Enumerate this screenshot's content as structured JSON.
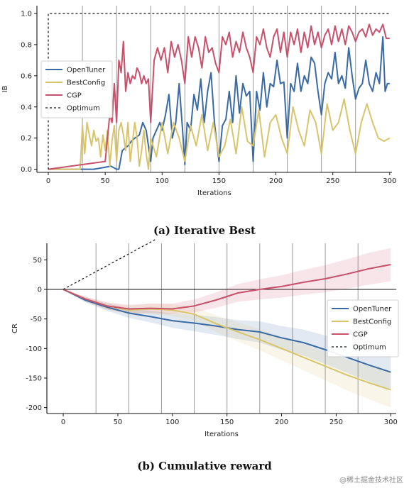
{
  "colors": {
    "OpenTuner": "#3a6aa6",
    "BestConfig": "#d9c46a",
    "CGP": "#c8506a",
    "Optimum": "#111111",
    "vline": "#9a9a9a"
  },
  "watermark": "@稀土掘金技术社区",
  "chart_data": [
    {
      "type": "line",
      "caption": "(a) Iterative Best",
      "xlabel": "Iterations",
      "ylabel": "IB",
      "xlim": [
        -10,
        302
      ],
      "ylim": [
        -0.02,
        1.05
      ],
      "xticks": [
        0,
        50,
        100,
        150,
        200,
        250,
        300
      ],
      "yticks": [
        0.0,
        0.2,
        0.4,
        0.6,
        0.8,
        1.0
      ],
      "ytick_labels": [
        "0.0",
        "0.2",
        "0.4",
        "0.6",
        "0.8",
        "1.0"
      ],
      "vlines": [
        30,
        60,
        90,
        120,
        150,
        180,
        210,
        240,
        270
      ],
      "legend_position": "center-left",
      "series": [
        {
          "name": "OpenTuner",
          "style": "solid",
          "x": [
            0,
            40,
            48,
            55,
            60,
            62,
            65,
            70,
            73,
            76,
            80,
            83,
            86,
            90,
            92,
            95,
            98,
            100,
            103,
            106,
            109,
            112,
            115,
            118,
            120,
            122,
            125,
            128,
            131,
            134,
            137,
            140,
            143,
            146,
            150,
            153,
            156,
            159,
            162,
            165,
            168,
            171,
            174,
            177,
            180,
            183,
            186,
            189,
            192,
            195,
            198,
            201,
            204,
            207,
            210,
            213,
            216,
            219,
            222,
            225,
            228,
            231,
            234,
            237,
            240,
            243,
            246,
            249,
            252,
            255,
            258,
            261,
            264,
            267,
            270,
            273,
            276,
            279,
            282,
            285,
            288,
            291,
            294,
            296,
            298,
            300
          ],
          "y": [
            0,
            0,
            0.01,
            0.02,
            0.0,
            0.0,
            0.12,
            0.15,
            0.18,
            0.2,
            0.22,
            0.3,
            0.25,
            0.05,
            0.2,
            0.25,
            0.3,
            0.25,
            0.35,
            0.48,
            0.2,
            0.3,
            0.55,
            0.25,
            0.03,
            0.3,
            0.25,
            0.48,
            0.38,
            0.58,
            0.3,
            0.5,
            0.62,
            0.3,
            0.05,
            0.28,
            0.32,
            0.5,
            0.3,
            0.6,
            0.36,
            0.55,
            0.47,
            0.5,
            0.05,
            0.5,
            0.38,
            0.62,
            0.4,
            0.55,
            0.53,
            0.7,
            0.55,
            0.56,
            0.2,
            0.55,
            0.5,
            0.68,
            0.5,
            0.6,
            0.55,
            0.72,
            0.68,
            0.5,
            0.35,
            0.55,
            0.62,
            0.58,
            0.75,
            0.55,
            0.6,
            0.52,
            0.78,
            0.6,
            0.45,
            0.52,
            0.55,
            0.7,
            0.55,
            0.5,
            0.62,
            0.55,
            0.85,
            0.5,
            0.55,
            0.55
          ]
        },
        {
          "name": "BestConfig",
          "style": "solid",
          "x": [
            0,
            28,
            30,
            32,
            34,
            36,
            38,
            40,
            42,
            44,
            46,
            48,
            50,
            52,
            54,
            56,
            58,
            60,
            62,
            64,
            66,
            68,
            70,
            72,
            74,
            76,
            78,
            80,
            82,
            84,
            86,
            88,
            90,
            95,
            100,
            105,
            110,
            115,
            120,
            125,
            130,
            135,
            140,
            145,
            150,
            155,
            160,
            165,
            170,
            175,
            180,
            185,
            190,
            195,
            200,
            205,
            210,
            215,
            220,
            225,
            230,
            235,
            240,
            245,
            250,
            255,
            260,
            265,
            270,
            275,
            280,
            285,
            290,
            295,
            300
          ],
          "y": [
            0,
            0,
            0.28,
            0.1,
            0.3,
            0.22,
            0.15,
            0.25,
            0.18,
            0.2,
            0.08,
            0.22,
            0.12,
            0.25,
            0.02,
            0.18,
            0.28,
            0.05,
            0.25,
            0.3,
            0.22,
            0.12,
            0.3,
            0.05,
            0.18,
            0.3,
            0.2,
            0.02,
            0.12,
            0.25,
            0.1,
            0.0,
            0.2,
            0.08,
            0.3,
            0.1,
            0.3,
            0.2,
            0.05,
            0.28,
            0.15,
            0.35,
            0.12,
            0.3,
            0.08,
            0.15,
            0.32,
            0.1,
            0.4,
            0.18,
            0.15,
            0.38,
            0.08,
            0.3,
            0.35,
            0.2,
            0.1,
            0.4,
            0.25,
            0.15,
            0.38,
            0.3,
            0.1,
            0.42,
            0.25,
            0.3,
            0.45,
            0.25,
            0.1,
            0.3,
            0.42,
            0.3,
            0.2,
            0.18,
            0.2
          ]
        },
        {
          "name": "CGP",
          "style": "solid",
          "x": [
            0,
            50,
            52,
            54,
            56,
            58,
            60,
            62,
            64,
            66,
            68,
            70,
            72,
            74,
            76,
            78,
            80,
            82,
            84,
            86,
            88,
            90,
            93,
            96,
            99,
            102,
            105,
            108,
            111,
            114,
            117,
            120,
            123,
            126,
            129,
            132,
            135,
            138,
            141,
            144,
            147,
            150,
            153,
            156,
            159,
            162,
            165,
            168,
            171,
            174,
            177,
            180,
            183,
            186,
            189,
            192,
            195,
            198,
            201,
            204,
            207,
            210,
            213,
            216,
            219,
            222,
            225,
            228,
            231,
            234,
            237,
            240,
            243,
            246,
            249,
            252,
            255,
            258,
            261,
            264,
            267,
            270,
            273,
            276,
            279,
            282,
            285,
            288,
            291,
            294,
            297,
            300
          ],
          "y": [
            0,
            0.05,
            0.2,
            0.35,
            0.3,
            0.55,
            0.3,
            0.7,
            0.62,
            0.82,
            0.5,
            0.62,
            0.55,
            0.6,
            0.58,
            0.65,
            0.62,
            0.55,
            0.6,
            0.55,
            0.58,
            0.3,
            0.7,
            0.78,
            0.7,
            0.78,
            0.62,
            0.82,
            0.72,
            0.8,
            0.7,
            0.55,
            0.85,
            0.72,
            0.85,
            0.78,
            0.65,
            0.85,
            0.75,
            0.78,
            0.68,
            0.62,
            0.85,
            0.8,
            0.88,
            0.72,
            0.82,
            0.75,
            0.88,
            0.78,
            0.72,
            0.62,
            0.85,
            0.8,
            0.9,
            0.78,
            0.72,
            0.85,
            0.9,
            0.75,
            0.88,
            0.72,
            0.88,
            0.8,
            0.9,
            0.75,
            0.88,
            0.78,
            0.92,
            0.8,
            0.88,
            0.78,
            0.86,
            0.9,
            0.8,
            0.92,
            0.82,
            0.9,
            0.8,
            0.92,
            0.88,
            0.82,
            0.88,
            0.9,
            0.85,
            0.93,
            0.86,
            0.9,
            0.88,
            0.93,
            0.84,
            0.84
          ]
        },
        {
          "name": "Optimum",
          "style": "dashed",
          "x": [
            0,
            0,
            300
          ],
          "y": [
            0,
            1.0,
            1.0
          ]
        }
      ]
    },
    {
      "type": "line",
      "caption": "(b) Cumulative reward",
      "xlabel": "Iterations",
      "ylabel": "CR",
      "xlim": [
        -15,
        305
      ],
      "ylim": [
        -210,
        78
      ],
      "xticks": [
        0,
        50,
        100,
        150,
        200,
        250,
        300
      ],
      "yticks": [
        50,
        0,
        -50,
        -100,
        -150,
        -200
      ],
      "vlines": [
        30,
        60,
        90,
        120,
        150,
        180,
        210,
        240,
        270
      ],
      "legend_position": "center-right",
      "series": [
        {
          "name": "OpenTuner",
          "style": "solid",
          "x": [
            0,
            20,
            40,
            60,
            80,
            100,
            120,
            140,
            160,
            180,
            200,
            220,
            240,
            260,
            280,
            300
          ],
          "y": [
            0,
            -18,
            -30,
            -40,
            -46,
            -53,
            -57,
            -62,
            -68,
            -72,
            -82,
            -90,
            -102,
            -115,
            -128,
            -140
          ],
          "band": [
            0,
            4,
            6,
            8,
            10,
            12,
            14,
            15,
            16,
            18,
            20,
            22,
            24,
            26,
            28,
            30
          ]
        },
        {
          "name": "BestConfig",
          "style": "solid",
          "x": [
            0,
            20,
            40,
            60,
            80,
            100,
            120,
            140,
            160,
            180,
            200,
            220,
            240,
            260,
            280,
            300
          ],
          "y": [
            0,
            -16,
            -28,
            -35,
            -33,
            -35,
            -42,
            -58,
            -72,
            -85,
            -100,
            -115,
            -130,
            -145,
            -158,
            -170
          ],
          "band": [
            0,
            4,
            6,
            7,
            9,
            10,
            12,
            14,
            16,
            18,
            20,
            22,
            24,
            26,
            28,
            30
          ]
        },
        {
          "name": "CGP",
          "style": "solid",
          "x": [
            0,
            20,
            40,
            60,
            80,
            100,
            120,
            140,
            160,
            180,
            200,
            220,
            240,
            260,
            280,
            300
          ],
          "y": [
            0,
            -16,
            -28,
            -33,
            -32,
            -33,
            -28,
            -18,
            -6,
            0,
            5,
            12,
            18,
            26,
            35,
            42
          ],
          "band": [
            0,
            4,
            6,
            7,
            8,
            9,
            11,
            13,
            15,
            17,
            19,
            21,
            23,
            25,
            27,
            28
          ]
        },
        {
          "name": "Optimum",
          "style": "dashed",
          "x": [
            0,
            85
          ],
          "y": [
            0,
            85
          ]
        }
      ]
    }
  ]
}
